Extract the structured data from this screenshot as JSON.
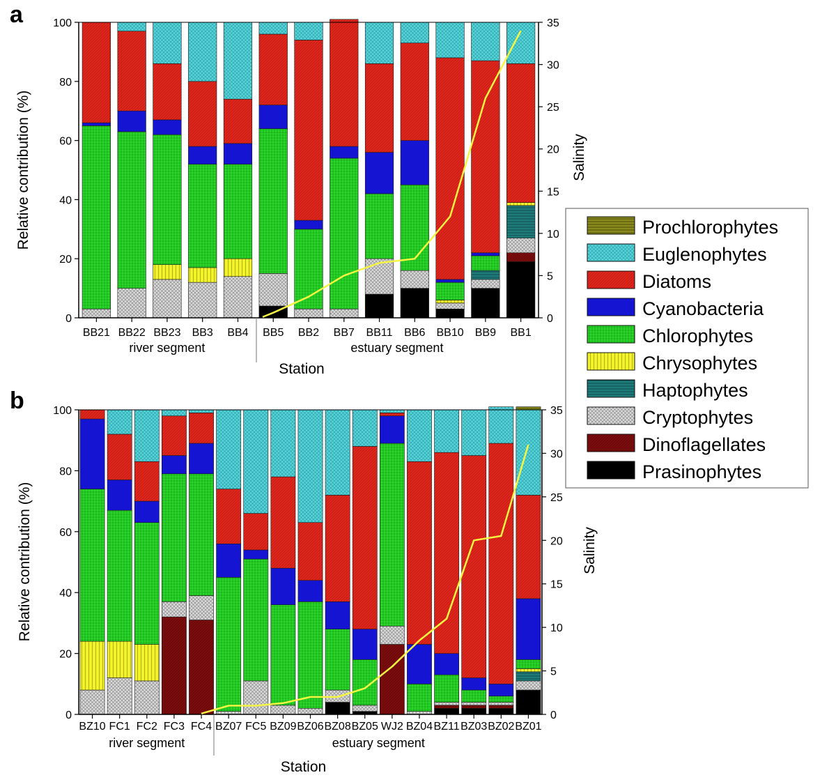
{
  "legend": {
    "order": [
      "Prochlorophytes",
      "Euglenophytes",
      "Diatoms",
      "Cyanobacteria",
      "Chlorophytes",
      "Chrysophytes",
      "Haptophytes",
      "Cryptophytes",
      "Dinoflagellates",
      "Prasinophytes"
    ],
    "colors": {
      "Prasinophytes": "#000000",
      "Dinoflagellates": "#7a0c0c",
      "Cryptophytes": "#d8d8d8",
      "Haptophytes": "#1f7a7a",
      "Chrysophytes": "#f3f32a",
      "Chlorophytes": "#27d427",
      "Cyanobacteria": "#1414d2",
      "Diatoms": "#e1261c",
      "Euglenophytes": "#48cfd4",
      "Prochlorophytes": "#8a8a1e"
    }
  },
  "chart_data": [
    {
      "type": "bar",
      "panel": "a",
      "xlabel": "Station",
      "ylabel": "Relative contribution (%)",
      "y2label": "Salinity",
      "ylim": [
        0,
        100
      ],
      "y2lim": [
        0,
        35
      ],
      "yticks": [
        0,
        20,
        40,
        60,
        80,
        100
      ],
      "y2ticks": [
        0,
        5,
        10,
        15,
        20,
        25,
        30,
        35
      ],
      "categories": [
        "BB21",
        "BB22",
        "BB23",
        "BB3",
        "BB4",
        "BB5",
        "BB2",
        "BB7",
        "BB11",
        "BB6",
        "BB10",
        "BB9",
        "BB1"
      ],
      "segments": [
        {
          "label": "river segment",
          "from": 0,
          "to": 4
        },
        {
          "label": "estuary segment",
          "from": 5,
          "to": 12
        }
      ],
      "series": [
        {
          "name": "Prasinophytes",
          "values": [
            0,
            0,
            0,
            0,
            0,
            4,
            0,
            0,
            8,
            10,
            3,
            10,
            19
          ]
        },
        {
          "name": "Dinoflagellates",
          "values": [
            0,
            0,
            0,
            0,
            0,
            0,
            0,
            0,
            0,
            0,
            0,
            0,
            3
          ]
        },
        {
          "name": "Cryptophytes",
          "values": [
            3,
            10,
            13,
            12,
            14,
            11,
            3,
            3,
            12,
            6,
            2,
            3,
            5
          ]
        },
        {
          "name": "Haptophytes",
          "values": [
            0,
            0,
            0,
            0,
            0,
            0,
            0,
            0,
            0,
            0,
            0,
            3,
            11
          ]
        },
        {
          "name": "Chrysophytes",
          "values": [
            0,
            0,
            5,
            5,
            6,
            0,
            0,
            0,
            0,
            0,
            1,
            0,
            1
          ]
        },
        {
          "name": "Chlorophytes",
          "values": [
            62,
            53,
            44,
            35,
            32,
            49,
            27,
            51,
            22,
            29,
            6,
            5,
            0
          ]
        },
        {
          "name": "Cyanobacteria",
          "values": [
            1,
            7,
            5,
            6,
            7,
            8,
            3,
            4,
            14,
            15,
            1,
            1,
            0
          ]
        },
        {
          "name": "Diatoms",
          "values": [
            34,
            27,
            19,
            22,
            15,
            24,
            61,
            43,
            30,
            33,
            75,
            65,
            47
          ]
        },
        {
          "name": "Euglenophytes",
          "values": [
            0,
            3,
            14,
            20,
            26,
            4,
            6,
            0,
            14,
            7,
            12,
            13,
            14
          ]
        },
        {
          "name": "Prochlorophytes",
          "values": [
            0,
            0,
            0,
            0,
            0,
            0,
            0,
            0,
            0,
            0,
            0,
            0,
            0
          ]
        }
      ],
      "salinity": {
        "start_index": 4.7,
        "values": [
          0.1,
          0.6,
          2.5,
          5.0,
          6.5,
          7.0,
          12.0,
          26.0,
          34.0
        ]
      }
    },
    {
      "type": "bar",
      "panel": "b",
      "xlabel": "Station",
      "ylabel": "Relative contribution (%)",
      "y2label": "Salinity",
      "ylim": [
        0,
        100
      ],
      "y2lim": [
        0,
        35
      ],
      "yticks": [
        0,
        20,
        40,
        60,
        80,
        100
      ],
      "y2ticks": [
        0,
        5,
        10,
        15,
        20,
        25,
        30,
        35
      ],
      "categories": [
        "BZ10",
        "FC1",
        "FC2",
        "FC3",
        "FC4",
        "BZ07",
        "FC5",
        "BZ09",
        "BZ06",
        "BZ08",
        "BZ05",
        "WJ2",
        "BZ04",
        "BZ11",
        "BZ03",
        "BZ02",
        "BZ01"
      ],
      "segments": [
        {
          "label": "river segment",
          "from": 0,
          "to": 4
        },
        {
          "label": "estuary segment",
          "from": 5,
          "to": 16
        }
      ],
      "series": [
        {
          "name": "Prasinophytes",
          "values": [
            0,
            0,
            0,
            0,
            0,
            0,
            0,
            0,
            0,
            4,
            1,
            0,
            0,
            2,
            2,
            2,
            8
          ]
        },
        {
          "name": "Dinoflagellates",
          "values": [
            0,
            0,
            0,
            32,
            31,
            0,
            0,
            0,
            0,
            0,
            0,
            23,
            0,
            1,
            1,
            1,
            0
          ]
        },
        {
          "name": "Cryptophytes",
          "values": [
            8,
            12,
            11,
            5,
            8,
            1,
            11,
            3,
            2,
            4,
            2,
            6,
            1,
            1,
            1,
            1,
            3
          ]
        },
        {
          "name": "Haptophytes",
          "values": [
            0,
            0,
            0,
            0,
            0,
            0,
            0,
            0,
            0,
            0,
            0,
            0,
            0,
            0,
            0,
            0,
            3
          ]
        },
        {
          "name": "Chrysophytes",
          "values": [
            16,
            12,
            12,
            0,
            0,
            0,
            0,
            0,
            0,
            0,
            0,
            0,
            0,
            0,
            0,
            0,
            1
          ]
        },
        {
          "name": "Chlorophytes",
          "values": [
            50,
            43,
            40,
            42,
            40,
            44,
            40,
            33,
            35,
            20,
            15,
            60,
            9,
            9,
            4,
            2,
            3
          ]
        },
        {
          "name": "Cyanobacteria",
          "values": [
            23,
            10,
            7,
            6,
            10,
            11,
            3,
            12,
            7,
            9,
            10,
            9,
            13,
            7,
            4,
            4,
            20
          ]
        },
        {
          "name": "Diatoms",
          "values": [
            3,
            15,
            13,
            13,
            10,
            18,
            12,
            30,
            19,
            35,
            60,
            1,
            60,
            66,
            73,
            79,
            34
          ]
        },
        {
          "name": "Euglenophytes",
          "values": [
            0,
            8,
            17,
            2,
            1,
            26,
            34,
            22,
            37,
            28,
            12,
            1,
            17,
            14,
            15,
            12,
            28
          ]
        },
        {
          "name": "Prochlorophytes",
          "values": [
            0,
            0,
            0,
            0,
            0,
            0,
            0,
            0,
            0,
            0,
            0,
            0,
            0,
            0,
            0,
            0,
            1
          ]
        }
      ],
      "salinity": {
        "start_index": 4.0,
        "values": [
          0.1,
          1.0,
          1.0,
          1.3,
          2.0,
          2.0,
          3.0,
          5.5,
          8.5,
          11.0,
          20.0,
          20.5,
          31.0
        ]
      }
    }
  ]
}
